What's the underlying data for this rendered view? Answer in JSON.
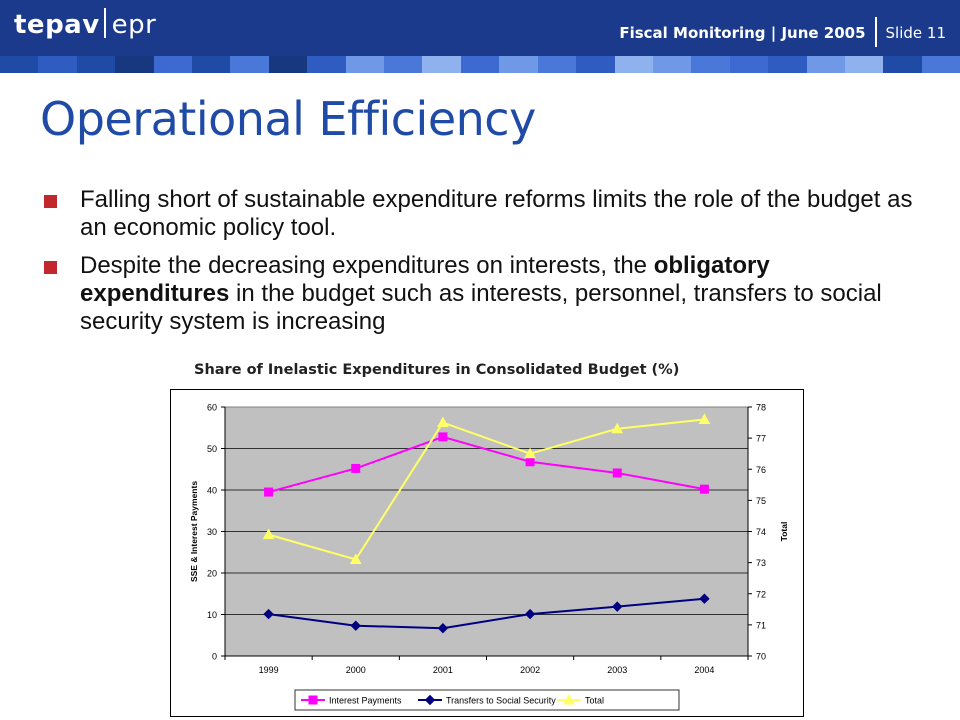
{
  "header": {
    "logo_a": "tepav",
    "logo_b": "epr",
    "subtitle": "Fiscal Monitoring | June 2005",
    "slide": "Slide 11",
    "bg_color": "#1b3a8c"
  },
  "slide_title": "Operational Efficiency",
  "bullets": {
    "b1": "Falling short of sustainable expenditure reforms limits the role of the budget as an economic policy tool.",
    "b2_pre": "Despite the decreasing expenditures on interests, the ",
    "b2_bold": "obligatory expenditures",
    "b2_post": " in the budget such as interests, personnel, transfers to social security system is increasing"
  },
  "chart_data": {
    "type": "line",
    "title": "Share of Inelastic Expenditures in Consolidated Budget (%)",
    "categories": [
      "1999",
      "2000",
      "2001",
      "2002",
      "2003",
      "2004"
    ],
    "ylabel": "SSE & Interest Payments",
    "y2label": "Total",
    "ylim": [
      0,
      60
    ],
    "yticks": [
      "0",
      "10",
      "20",
      "30",
      "40",
      "50",
      "60"
    ],
    "y2lim": [
      70,
      78
    ],
    "y2ticks": [
      "70",
      "71",
      "72",
      "73",
      "74",
      "75",
      "76",
      "77",
      "78"
    ],
    "grid": "horizontal",
    "legend": "bottom",
    "plot_bg": "#c0c0c0",
    "series": [
      {
        "name": "Interest Payments",
        "axis": "left",
        "values": [
          39.5,
          45.2,
          52.8,
          46.8,
          44.1,
          40.2
        ],
        "color": "#ff00ff",
        "marker": "square"
      },
      {
        "name": "Transfers to Social Security",
        "axis": "left",
        "values": [
          10.1,
          7.3,
          6.7,
          10.1,
          11.9,
          13.8
        ],
        "color": "#000080",
        "marker": "diamond"
      },
      {
        "name": "Total",
        "axis": "right",
        "values": [
          73.9,
          73.1,
          77.5,
          76.5,
          77.3,
          77.6
        ],
        "color": "#ffff66",
        "marker": "triangle"
      }
    ]
  }
}
